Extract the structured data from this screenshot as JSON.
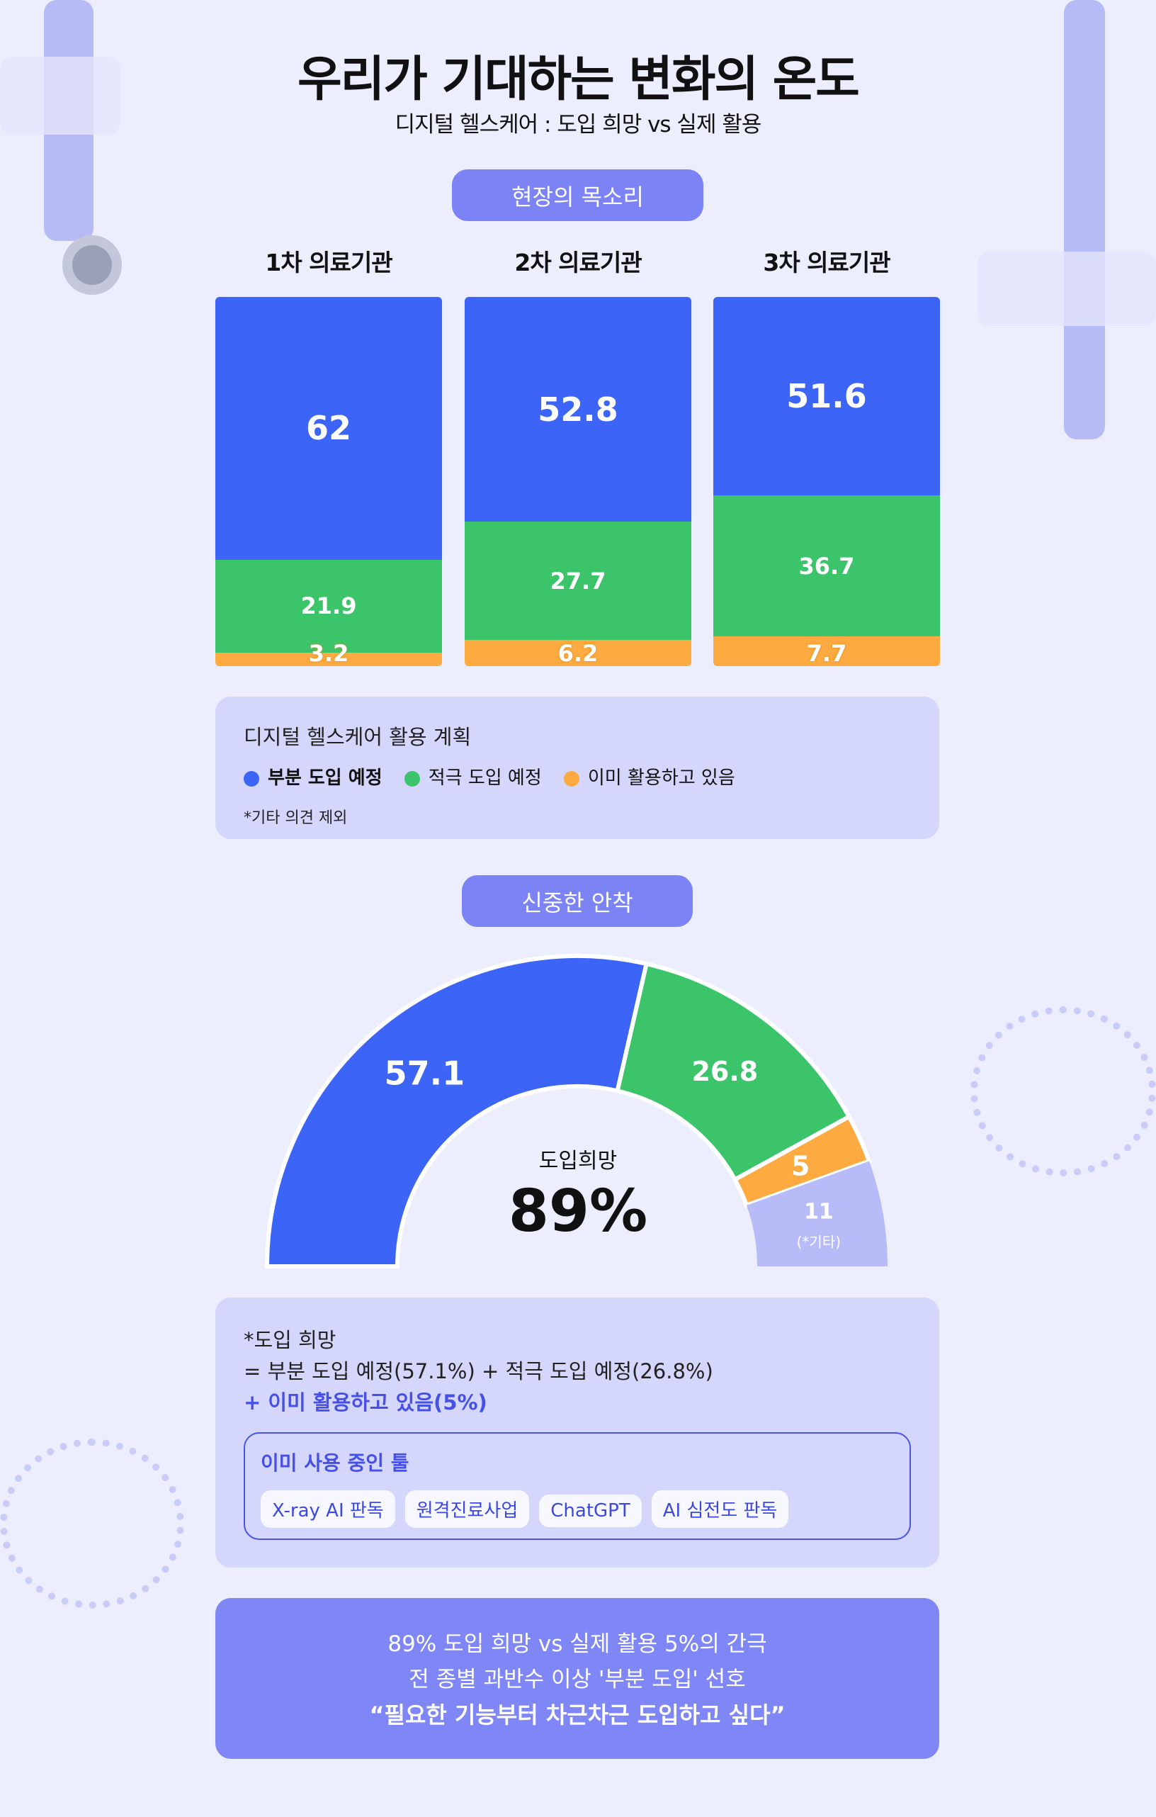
{
  "header": {
    "title": "우리가 기대하는 변화의 온도",
    "subtitle": "디지털 헬스케어 : 도입 희망 vs 실제 활용"
  },
  "section1": {
    "pill": "현장의 목소리"
  },
  "section2": {
    "pill": "신중한 안착"
  },
  "colors": {
    "blue": "#3c64f6",
    "green": "#3cc46b",
    "orange": "#fdaa40",
    "other": "#b7bcf9",
    "accent": "#7c83f4"
  },
  "chart_data": [
    {
      "type": "bar",
      "stacked": true,
      "normalized": true,
      "categories": [
        "1차 의료기관",
        "2차 의료기관",
        "3차 의료기관"
      ],
      "series": [
        {
          "name": "부분 도입 예정",
          "values": [
            62,
            52.8,
            51.6
          ]
        },
        {
          "name": "적극 도입 예정",
          "values": [
            21.9,
            27.7,
            36.7
          ]
        },
        {
          "name": "이미 활용하고 있음",
          "values": [
            3.2,
            6.2,
            7.7
          ]
        }
      ]
    },
    {
      "type": "pie",
      "shape": "half-donut",
      "slices": [
        {
          "name": "부분 도입 예정",
          "value": 57.1,
          "label": "57.1"
        },
        {
          "name": "적극 도입 예정",
          "value": 26.8,
          "label": "26.8"
        },
        {
          "name": "이미 활용하고 있음",
          "value": 5,
          "label": "5"
        },
        {
          "name": "기타",
          "value": 11,
          "label": "11",
          "sublabel": "(*기타)"
        }
      ],
      "center_label": "도입희망",
      "center_value": "89%"
    }
  ],
  "legend": {
    "title": "디지털 헬스케어 활용 계획",
    "items": [
      "부분 도입 예정",
      "적극 도입 예정",
      "이미 활용하고 있음"
    ],
    "note": "*기타 의견 제외"
  },
  "explain": {
    "line1": "*도입 희망",
    "line2": "= 부분 도입 예정(57.1%) + 적극 도입 예정(26.8%)",
    "line3": "+ 이미 활용하고 있음(5%)",
    "tools_title": "이미 사용 중인 툴",
    "tools": [
      "X-ray AI 판독",
      "원격진료사업",
      "ChatGPT",
      "AI 심전도 판독"
    ]
  },
  "summary": {
    "line1": "89% 도입 희망 vs 실제 활용 5%의 간극",
    "line2": "전 종별 과반수 이상 '부분 도입' 선호",
    "line3": "“필요한 기능부터 차근차근 도입하고 싶다”"
  }
}
